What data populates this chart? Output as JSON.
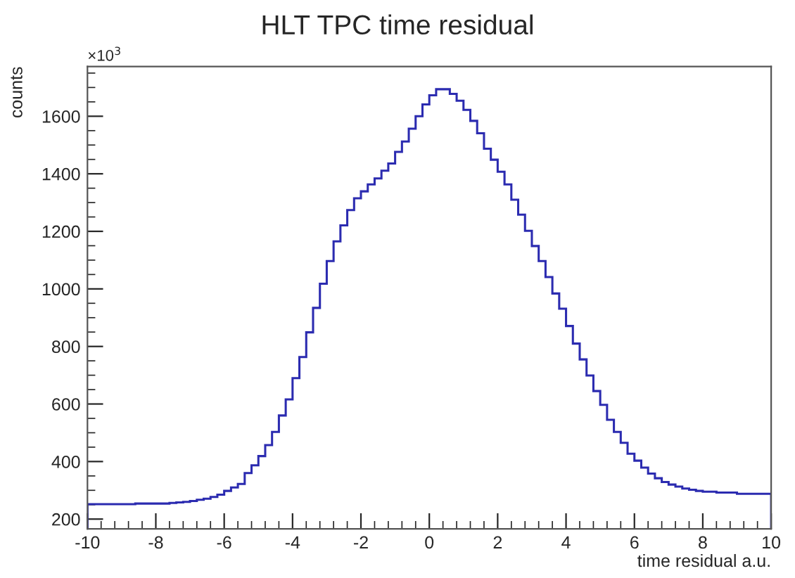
{
  "chart_data": {
    "type": "histogram",
    "title": "HLT TPC time residual",
    "xlabel": "time residual a.u.",
    "ylabel": "counts",
    "annotations": [
      "×10$^{3}$"
    ],
    "color": "#2b2bb0",
    "bins": [
      -10,
      -9.8,
      -9.6,
      -9.4,
      -9.2,
      -9,
      -8.8,
      -8.6,
      -8.4,
      -8.2,
      -8,
      -7.8,
      -7.6,
      -7.4,
      -7.2,
      -7,
      -6.8,
      -6.6,
      -6.4,
      -6.2,
      -6,
      -5.8,
      -5.6,
      -5.4,
      -5.2,
      -5,
      -4.8,
      -4.6,
      -4.4,
      -4.2,
      -4,
      -3.8,
      -3.6,
      -3.4,
      -3.2,
      -3,
      -2.8,
      -2.6,
      -2.4,
      -2.2,
      -2,
      -1.8,
      -1.6,
      -1.4,
      -1.2,
      -1,
      -0.8,
      -0.6,
      -0.4,
      -0.2,
      0,
      0.2,
      0.4,
      0.6,
      0.8,
      1,
      1.2,
      1.4,
      1.6,
      1.8,
      2,
      2.2,
      2.4,
      2.6,
      2.8,
      3,
      3.2,
      3.4,
      3.6,
      3.8,
      4,
      4.2,
      4.4,
      4.6,
      4.8,
      5,
      5.2,
      5.4,
      5.6,
      5.8,
      6,
      6.2,
      6.4,
      6.6,
      6.8,
      7,
      7.2,
      7.4,
      7.6,
      7.8,
      8,
      8.2,
      8.4,
      8.6,
      8.8,
      9,
      9.2,
      9.4,
      9.6,
      9.8,
      10
    ],
    "values": [
      252,
      252,
      252,
      252,
      252,
      252,
      252,
      254,
      254,
      254,
      254,
      254,
      256,
      258,
      260,
      263,
      267,
      271,
      277,
      285,
      298,
      310,
      322,
      360,
      387,
      419,
      457,
      503,
      560,
      616,
      690,
      763,
      849,
      934,
      1018,
      1097,
      1165,
      1221,
      1274,
      1315,
      1339,
      1363,
      1384,
      1411,
      1436,
      1476,
      1512,
      1557,
      1600,
      1641,
      1673,
      1694,
      1694,
      1678,
      1654,
      1622,
      1584,
      1541,
      1487,
      1449,
      1407,
      1363,
      1310,
      1258,
      1202,
      1149,
      1097,
      1041,
      984,
      931,
      871,
      810,
      755,
      699,
      645,
      597,
      545,
      503,
      465,
      427,
      403,
      379,
      358,
      342,
      329,
      320,
      313,
      306,
      302,
      298,
      295,
      295,
      292,
      292,
      292,
      288,
      288,
      288,
      288,
      288
    ],
    "xlim": [
      -10,
      10
    ],
    "xticks": [
      -10,
      -8,
      -6,
      -4,
      -2,
      0,
      2,
      4,
      6,
      8,
      10
    ],
    "ylim": [
      166,
      1773
    ],
    "yticks": [
      200,
      400,
      600,
      800,
      1000,
      1200,
      1400,
      1600
    ],
    "grid": false
  }
}
